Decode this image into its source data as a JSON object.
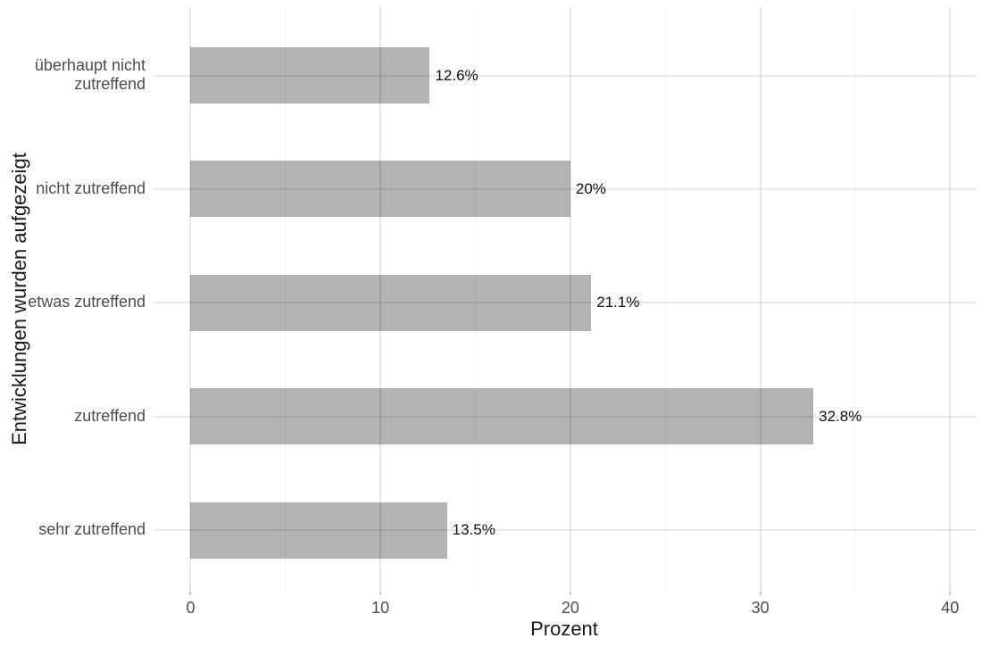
{
  "chart_data": {
    "type": "bar",
    "orientation": "horizontal",
    "categories": [
      "überhaupt nicht\nzutreffend",
      "nicht zutreffend",
      "etwas zutreffend",
      "zutreffend",
      "sehr zutreffend"
    ],
    "values": [
      12.6,
      20,
      21.1,
      32.8,
      13.5
    ],
    "value_labels": [
      "12.6%",
      "20%",
      "21.1%",
      "32.8%",
      "13.5%"
    ],
    "xlabel": "Prozent",
    "ylabel": "Entwicklungen wurden aufgezeigt",
    "x_ticks": [
      0,
      10,
      20,
      30,
      40
    ],
    "x_minor_ticks": [
      5,
      15,
      25,
      35
    ],
    "xlim": [
      -1.95,
      41.35
    ],
    "grid": "on",
    "legend_position": "none",
    "bar_color": "#b3b3b3",
    "axis_text_color": "#4d4d4d",
    "axis_title_color": "#1a1a1a",
    "value_label_color": "#111111",
    "background_color": "#ffffff"
  }
}
